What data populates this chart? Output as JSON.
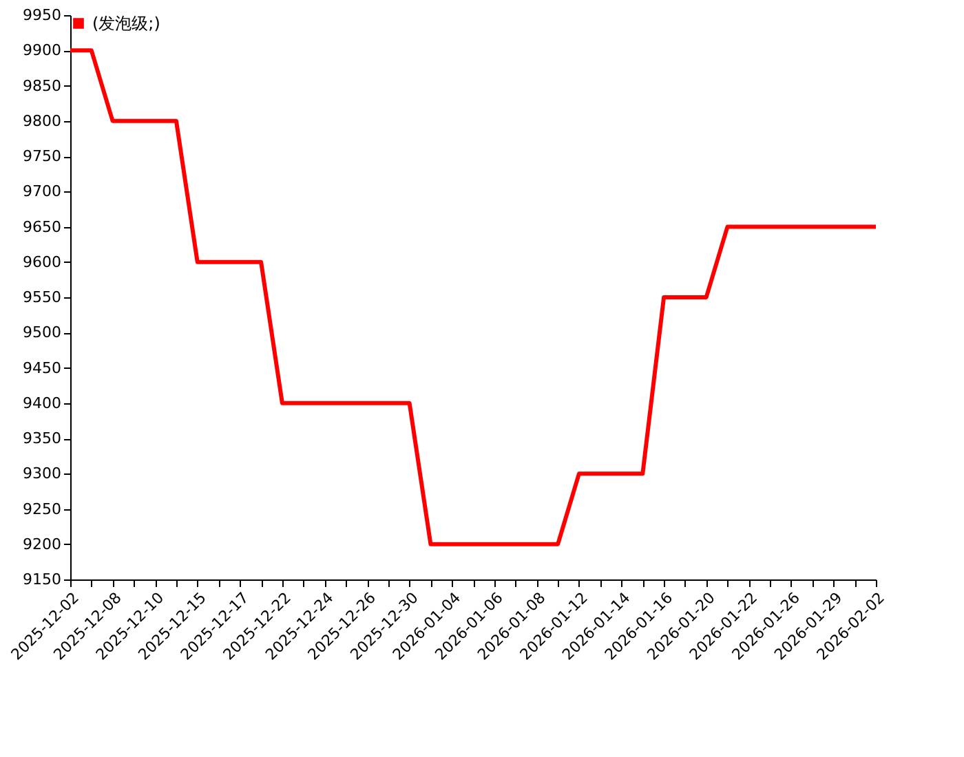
{
  "chart_data": {
    "type": "line",
    "categories": [
      "2025-12-02",
      null,
      "2025-12-08",
      null,
      "2025-12-10",
      null,
      "2025-12-15",
      null,
      "2025-12-17",
      null,
      "2025-12-22",
      null,
      "2025-12-24",
      null,
      "2025-12-26",
      null,
      "2025-12-30",
      null,
      "2026-01-04",
      null,
      "2026-01-06",
      null,
      "2026-01-08",
      null,
      "2026-01-12",
      null,
      "2026-01-14",
      null,
      "2026-01-16",
      null,
      "2026-01-20",
      null,
      "2026-01-22",
      null,
      "2026-01-26",
      null,
      "2026-01-29",
      null,
      "2026-02-02"
    ],
    "series": [
      {
        "name": "(发泡级;)",
        "color": "#ff0000",
        "values": [
          9900,
          9900,
          9800,
          9800,
          9800,
          9800,
          9600,
          9600,
          9600,
          9600,
          9400,
          9400,
          9400,
          9400,
          9400,
          9400,
          9400,
          9200,
          9200,
          9200,
          9200,
          9200,
          9200,
          9200,
          9300,
          9300,
          9300,
          9300,
          9550,
          9550,
          9550,
          9650,
          9650,
          9650,
          9650,
          9650,
          9650,
          9650,
          9650
        ]
      }
    ],
    "ylim": [
      9150,
      9950
    ],
    "yticks": [
      9150,
      9200,
      9250,
      9300,
      9350,
      9400,
      9450,
      9500,
      9550,
      9600,
      9650,
      9700,
      9750,
      9800,
      9850,
      9900,
      9950
    ],
    "grid": false,
    "legend": "top left",
    "marker": "none",
    "line_style": "solid"
  }
}
